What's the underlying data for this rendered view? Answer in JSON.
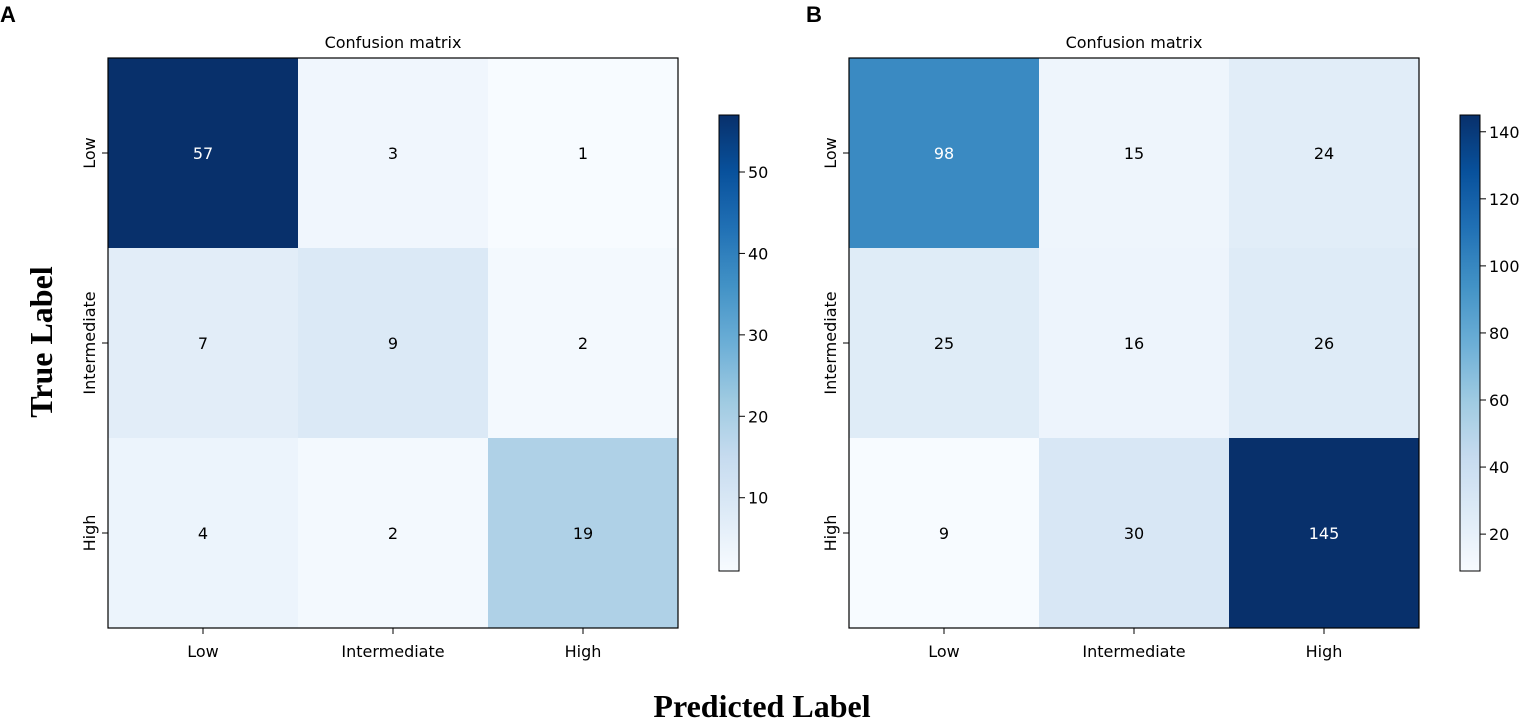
{
  "figure": {
    "xlabel": "Predicted Label",
    "ylabel": "True Label"
  },
  "chart_data": [
    {
      "type": "heatmap",
      "panel": "A",
      "title": "Confusion matrix",
      "x_categories": [
        "Low",
        "Intermediate",
        "High"
      ],
      "y_categories": [
        "Low",
        "Intermediate",
        "High"
      ],
      "values": [
        [
          57,
          3,
          1
        ],
        [
          7,
          9,
          2
        ],
        [
          4,
          2,
          19
        ]
      ],
      "colormap": "Blues",
      "vmin": 1,
      "vmax": 57,
      "colorbar_ticks": [
        10,
        20,
        30,
        40,
        50
      ]
    },
    {
      "type": "heatmap",
      "panel": "B",
      "title": "Confusion matrix",
      "x_categories": [
        "Low",
        "Intermediate",
        "High"
      ],
      "y_categories": [
        "Low",
        "Intermediate",
        "High"
      ],
      "values": [
        [
          98,
          15,
          24
        ],
        [
          25,
          16,
          26
        ],
        [
          9,
          30,
          145
        ]
      ],
      "colormap": "Blues",
      "vmin": 9,
      "vmax": 145,
      "colorbar_ticks": [
        20,
        40,
        60,
        80,
        100,
        120,
        140
      ]
    }
  ]
}
